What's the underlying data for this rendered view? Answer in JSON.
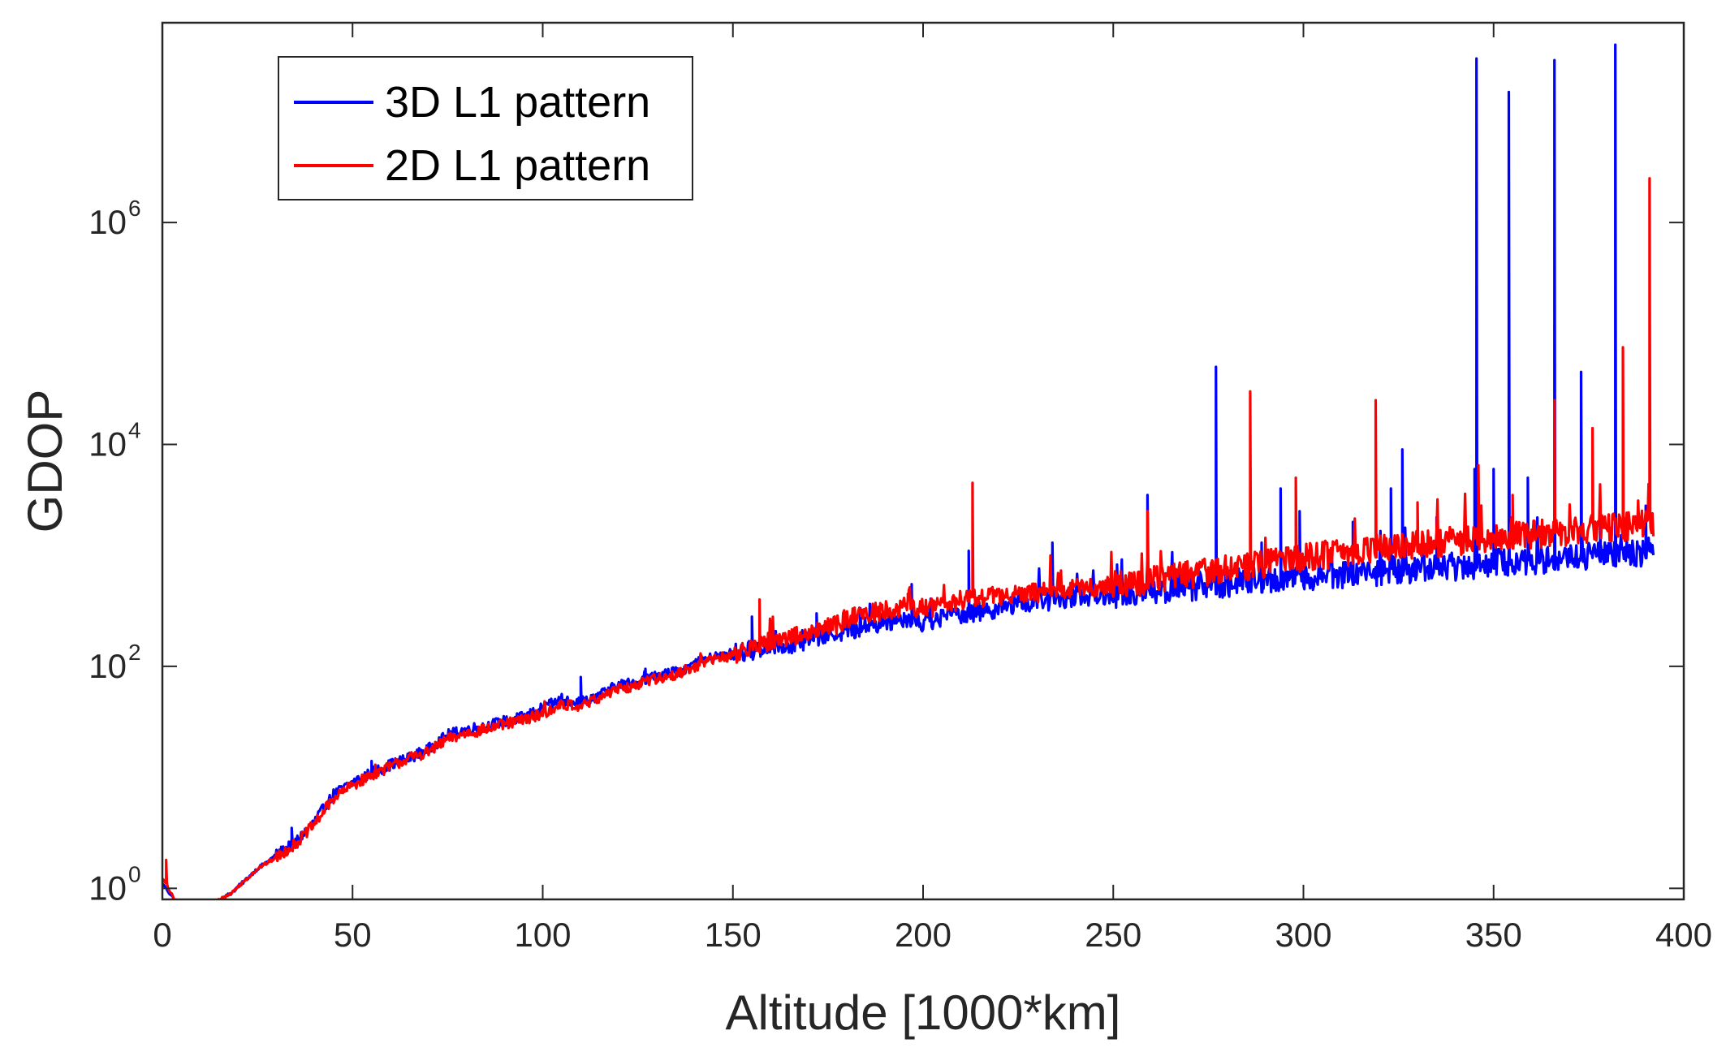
{
  "chart_data": {
    "type": "line",
    "title": "",
    "xlabel": "Altitude [1000*km]",
    "ylabel": "GDOP",
    "xlim": [
      0,
      400
    ],
    "ylim_log10": [
      -0.1,
      7.8
    ],
    "y_scale": "log",
    "x_ticks": [
      0,
      50,
      100,
      150,
      200,
      250,
      300,
      350,
      400
    ],
    "x_tick_labels": [
      "0",
      "50",
      "100",
      "150",
      "200",
      "250",
      "300",
      "350",
      "400"
    ],
    "y_ticks_log10": [
      0,
      2,
      4,
      6
    ],
    "y_tick_labels": [
      {
        "base": "10",
        "exp": "0"
      },
      {
        "base": "10",
        "exp": "2"
      },
      {
        "base": "10",
        "exp": "4"
      },
      {
        "base": "10",
        "exp": "6"
      }
    ],
    "legend_position": "top-left",
    "grid": false,
    "series": [
      {
        "name": "3D L1 pattern",
        "color": "#0000ff",
        "points": [
          [
            0,
            1.1
          ],
          [
            1,
            1.0
          ],
          [
            3,
            0.8
          ],
          [
            5,
            0.7
          ],
          [
            8,
            0.6
          ],
          [
            10,
            0.62
          ],
          [
            14,
            0.75
          ],
          [
            18,
            0.9
          ],
          [
            22,
            1.2
          ],
          [
            25,
            1.5
          ],
          [
            30,
            2.0
          ],
          [
            35,
            2.6
          ],
          [
            40,
            4.0
          ],
          [
            45,
            7.0
          ],
          [
            50,
            9.0
          ],
          [
            55,
            11.0
          ],
          [
            60,
            13.0
          ],
          [
            65,
            15.0
          ],
          [
            70,
            18.0
          ],
          [
            75,
            24.0
          ],
          [
            80,
            27.0
          ],
          [
            85,
            29.0
          ],
          [
            90,
            32.0
          ],
          [
            95,
            35.0
          ],
          [
            100,
            42.0
          ],
          [
            105,
            50.0
          ],
          [
            110,
            48.0
          ],
          [
            115,
            55.0
          ],
          [
            120,
            68.0
          ],
          [
            125,
            72.0
          ],
          [
            130,
            82.0
          ],
          [
            135,
            88.0
          ],
          [
            140,
            105.0
          ],
          [
            145,
            120.0
          ],
          [
            150,
            130.0
          ],
          [
            155,
            140.0
          ],
          [
            160,
            155.0
          ],
          [
            165,
            160.0
          ],
          [
            170,
            175.0
          ],
          [
            175,
            195.0
          ],
          [
            180,
            210.0
          ],
          [
            185,
            230.0
          ],
          [
            190,
            250.0
          ],
          [
            195,
            280.0
          ],
          [
            200,
            250.0
          ],
          [
            205,
            270.0
          ],
          [
            210,
            300.0
          ],
          [
            215,
            310.0
          ],
          [
            220,
            340.0
          ],
          [
            225,
            360.0
          ],
          [
            230,
            380.0
          ],
          [
            235,
            400.0
          ],
          [
            240,
            420.0
          ],
          [
            245,
            440.0
          ],
          [
            250,
            450.0
          ],
          [
            255,
            460.0
          ],
          [
            260,
            480.0
          ],
          [
            265,
            500.0
          ],
          [
            270,
            520.0
          ],
          [
            275,
            550.0
          ],
          [
            280,
            560.0
          ],
          [
            285,
            580.0
          ],
          [
            290,
            600.0
          ],
          [
            295,
            620.0
          ],
          [
            300,
            640.0
          ],
          [
            305,
            660.0
          ],
          [
            310,
            680.0
          ],
          [
            315,
            700.0
          ],
          [
            320,
            720.0
          ],
          [
            325,
            740.0
          ],
          [
            330,
            760.0
          ],
          [
            335,
            780.0
          ],
          [
            340,
            800.0
          ],
          [
            345,
            820.0
          ],
          [
            350,
            850.0
          ],
          [
            355,
            870.0
          ],
          [
            360,
            900.0
          ],
          [
            365,
            920.0
          ],
          [
            370,
            950.0
          ],
          [
            375,
            980.0
          ],
          [
            380,
            1000.0
          ],
          [
            385,
            1030.0
          ],
          [
            390,
            1060.0
          ],
          [
            392,
            1100.0
          ]
        ],
        "spikes": [
          [
            34,
            3.5
          ],
          [
            55,
            14.0
          ],
          [
            110,
            80.0
          ],
          [
            127,
            95.0
          ],
          [
            155,
            280.0
          ],
          [
            172,
            300.0
          ],
          [
            197,
            550.0
          ],
          [
            212,
            1100.0
          ],
          [
            234,
            1300.0
          ],
          [
            259,
            3500.0
          ],
          [
            267,
            600.0
          ],
          [
            277,
            50000.0
          ],
          [
            289,
            1300.0
          ],
          [
            294,
            4000.0
          ],
          [
            299,
            2500.0
          ],
          [
            313,
            2000.0
          ],
          [
            323,
            4000.0
          ],
          [
            326,
            9000.0
          ],
          [
            335,
            2200.0
          ],
          [
            345,
            6000.0
          ],
          [
            345.5,
            30000000.0
          ],
          [
            350,
            6000.0
          ],
          [
            354,
            15000000.0
          ],
          [
            359,
            5000.0
          ],
          [
            366,
            29000000.0
          ],
          [
            373,
            45000.0
          ],
          [
            378,
            3500.0
          ],
          [
            382,
            40000000.0
          ],
          [
            390,
            2800.0
          ]
        ]
      },
      {
        "name": "2D L1 pattern",
        "color": "#ff0000",
        "points": [
          [
            0,
            1.2
          ],
          [
            1,
            1.1
          ],
          [
            3,
            0.8
          ],
          [
            5,
            0.7
          ],
          [
            8,
            0.6
          ],
          [
            10,
            0.62
          ],
          [
            14,
            0.75
          ],
          [
            18,
            0.9
          ],
          [
            22,
            1.2
          ],
          [
            25,
            1.5
          ],
          [
            30,
            1.9
          ],
          [
            35,
            2.5
          ],
          [
            40,
            3.8
          ],
          [
            45,
            6.5
          ],
          [
            50,
            8.5
          ],
          [
            55,
            10.5
          ],
          [
            60,
            12.5
          ],
          [
            65,
            15.0
          ],
          [
            70,
            17.0
          ],
          [
            75,
            22.0
          ],
          [
            80,
            25.0
          ],
          [
            85,
            27.0
          ],
          [
            90,
            30.0
          ],
          [
            95,
            33.0
          ],
          [
            100,
            38.0
          ],
          [
            105,
            45.0
          ],
          [
            110,
            44.0
          ],
          [
            115,
            52.0
          ],
          [
            120,
            62.0
          ],
          [
            125,
            68.0
          ],
          [
            130,
            78.0
          ],
          [
            135,
            85.0
          ],
          [
            140,
            100.0
          ],
          [
            145,
            115.0
          ],
          [
            150,
            125.0
          ],
          [
            155,
            145.0
          ],
          [
            160,
            170.0
          ],
          [
            165,
            185.0
          ],
          [
            170,
            200.0
          ],
          [
            175,
            220.0
          ],
          [
            180,
            260.0
          ],
          [
            185,
            300.0
          ],
          [
            190,
            320.0
          ],
          [
            195,
            340.0
          ],
          [
            200,
            330.0
          ],
          [
            205,
            360.0
          ],
          [
            210,
            400.0
          ],
          [
            215,
            420.0
          ],
          [
            220,
            430.0
          ],
          [
            225,
            440.0
          ],
          [
            230,
            460.0
          ],
          [
            235,
            480.0
          ],
          [
            240,
            500.0
          ],
          [
            245,
            520.0
          ],
          [
            250,
            540.0
          ],
          [
            255,
            560.0
          ],
          [
            260,
            620.0
          ],
          [
            265,
            650.0
          ],
          [
            270,
            680.0
          ],
          [
            275,
            720.0
          ],
          [
            280,
            760.0
          ],
          [
            285,
            800.0
          ],
          [
            290,
            850.0
          ],
          [
            295,
            900.0
          ],
          [
            300,
            950.0
          ],
          [
            305,
            1000.0
          ],
          [
            310,
            1050.0
          ],
          [
            315,
            1100.0
          ],
          [
            320,
            1150.0
          ],
          [
            325,
            1200.0
          ],
          [
            330,
            1250.0
          ],
          [
            335,
            1300.0
          ],
          [
            340,
            1350.0
          ],
          [
            345,
            1400.0
          ],
          [
            350,
            1450.0
          ],
          [
            355,
            1500.0
          ],
          [
            360,
            1550.0
          ],
          [
            365,
            1600.0
          ],
          [
            370,
            1650.0
          ],
          [
            375,
            1700.0
          ],
          [
            380,
            1750.0
          ],
          [
            385,
            1800.0
          ],
          [
            390,
            1900.0
          ],
          [
            392,
            2000.0
          ]
        ],
        "spikes": [
          [
            1,
            1.8
          ],
          [
            56,
            13.0
          ],
          [
            157,
            400.0
          ],
          [
            196,
            450.0
          ],
          [
            213,
            4500.0
          ],
          [
            259,
            2500.0
          ],
          [
            276,
            900.0
          ],
          [
            286,
            30000.0
          ],
          [
            298,
            5000.0
          ],
          [
            319,
            25000.0
          ],
          [
            330,
            3000.0
          ],
          [
            346,
            6500.0
          ],
          [
            355,
            3500.0
          ],
          [
            366,
            25000.0
          ],
          [
            376,
            14000.0
          ],
          [
            384,
            75000.0
          ],
          [
            391,
            2500000.0
          ]
        ]
      }
    ]
  }
}
